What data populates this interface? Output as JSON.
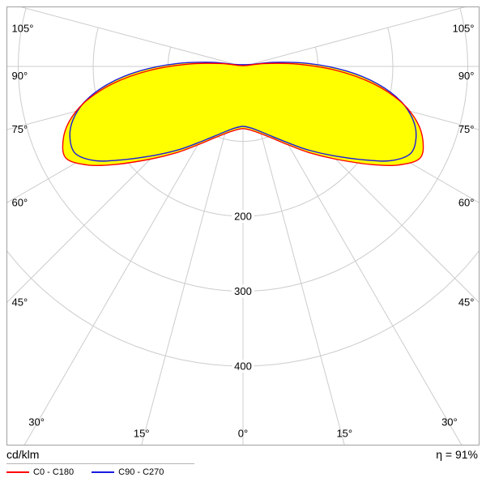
{
  "chart_data": {
    "type": "polar-photometric",
    "units_label": "cd/klm",
    "efficiency_label": "η = 91%",
    "angle_ticks_deg": [
      0,
      15,
      30,
      45,
      60,
      75,
      90,
      105
    ],
    "angle_tick_labels": [
      "0°",
      "15°",
      "30°",
      "45°",
      "60°",
      "75°",
      "90°",
      "105°"
    ],
    "max_angle_deg": 105,
    "radius_rings_cd_per_klm": [
      100,
      200,
      300,
      400
    ],
    "radius_ring_labels": {
      "200": "200",
      "300": "300",
      "400": "400"
    },
    "symmetric": true,
    "fill_color": "#ffff00",
    "grid_color": "#cccccc",
    "border_color": "#a0a0a0",
    "text_color": "#000000",
    "series": [
      {
        "name": "C0 - C180",
        "color": "#ff0000",
        "gamma_deg": [
          0,
          7.5,
          15,
          22.5,
          30,
          37.5,
          45,
          52.5,
          57.5,
          62.5,
          67.5,
          72.5,
          77.5,
          82.5,
          87.5,
          92.5,
          97.5,
          105
        ],
        "values_cd_per_klm": [
          83,
          86,
          93,
          104,
          121,
          145,
          175,
          215,
          245,
          266,
          260,
          243,
          215,
          175,
          125,
          72,
          30,
          5
        ]
      },
      {
        "name": "C90 - C270",
        "color": "#1a1ae0",
        "gamma_deg": [
          0,
          7.5,
          15,
          22.5,
          30,
          37.5,
          45,
          52.5,
          57.5,
          62.5,
          67.5,
          72.5,
          77.5,
          82.5,
          87.5,
          92.5,
          97.5,
          105
        ],
        "values_cd_per_klm": [
          80,
          83,
          90,
          101,
          117,
          140,
          168,
          205,
          234,
          252,
          250,
          238,
          216,
          182,
          138,
          88,
          42,
          10
        ]
      }
    ]
  }
}
